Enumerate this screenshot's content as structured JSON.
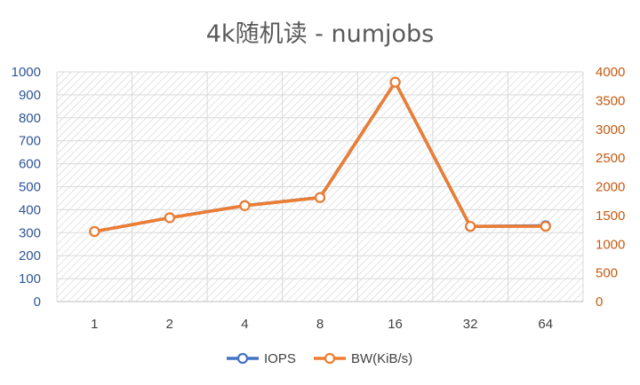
{
  "chart_data": {
    "type": "line",
    "title": "4k随机读 - numjobs",
    "categories": [
      "1",
      "2",
      "4",
      "8",
      "16",
      "32",
      "64"
    ],
    "y_left": {
      "min": 0,
      "max": 1000,
      "step": 100,
      "ticks": [
        "0",
        "100",
        "200",
        "300",
        "400",
        "500",
        "600",
        "700",
        "800",
        "900",
        "1000"
      ]
    },
    "y_right": {
      "min": 0,
      "max": 4000,
      "step": 500,
      "ticks": [
        "0",
        "500",
        "1000",
        "1500",
        "2000",
        "2500",
        "3000",
        "3500",
        "4000"
      ]
    },
    "series": [
      {
        "name": "IOPS",
        "axis": "left",
        "color": "#4472c4",
        "values": [
          305,
          365,
          418,
          453,
          955,
          327,
          330
        ]
      },
      {
        "name": "BW(KiB/s)",
        "axis": "right",
        "color": "#ed7d31",
        "values": [
          1220,
          1460,
          1670,
          1810,
          3820,
          1310,
          1310
        ]
      }
    ],
    "grid": true,
    "legend": "bottom"
  }
}
